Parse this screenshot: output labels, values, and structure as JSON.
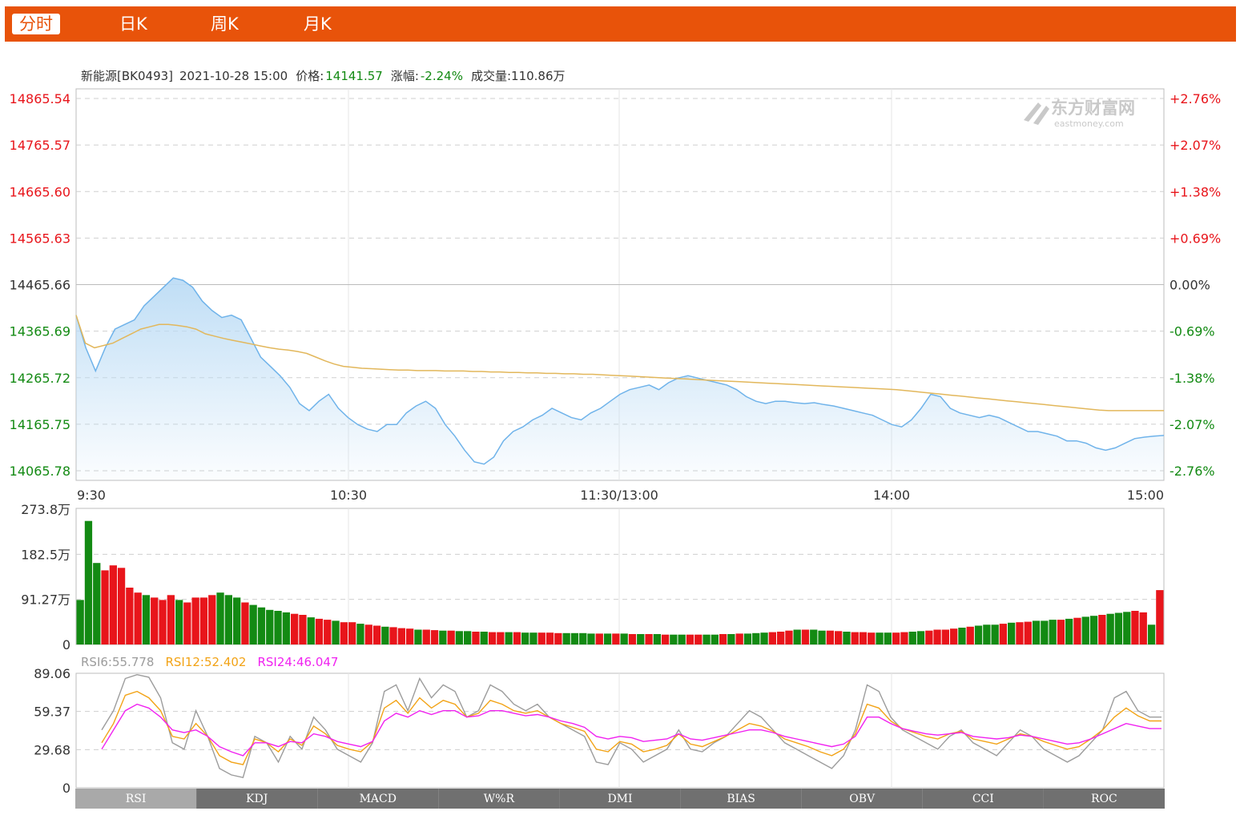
{
  "tabs": [
    {
      "label": "分时",
      "active": true
    },
    {
      "label": "日K"
    },
    {
      "label": "周K"
    },
    {
      "label": "月K"
    }
  ],
  "info": {
    "name": "新能源[BK0493]",
    "datetime": "2021-10-28 15:00",
    "price_label": "价格:",
    "price": "14141.57",
    "change_label": "涨幅:",
    "change": "-2.24%",
    "volume_label": "成交量:",
    "volume": "110.86万"
  },
  "watermark": {
    "cn": "东方财富网",
    "en": "eastmoney.com"
  },
  "colors": {
    "brand": "#e8530a",
    "up": "#e8151b",
    "down": "#138a13",
    "price_line": "#6fb3ea",
    "avg_line": "#e2b75b",
    "rsi6": "#9c9c9c",
    "rsi12": "#f2a316",
    "rsi24": "#f022f0"
  },
  "chart_data": [
    {
      "type": "line",
      "title": "新能源[BK0493]",
      "x_ticks": [
        "9:30",
        "10:30",
        "11:30/13:00",
        "14:00",
        "15:00"
      ],
      "y_ticks": [
        "14865.54",
        "14765.57",
        "14665.60",
        "14565.63",
        "14465.66",
        "14365.69",
        "14265.72",
        "14165.75",
        "14065.78"
      ],
      "y_right_ticks": [
        "+2.76%",
        "+2.07%",
        "+1.38%",
        "+0.69%",
        "0.00%",
        "-0.69%",
        "-1.38%",
        "-2.07%",
        "-2.76%"
      ],
      "ylim": [
        14065.78,
        14865.54
      ],
      "prev_close": 14465.66,
      "series": [
        {
          "name": "price",
          "values": [
            14400,
            14330,
            14280,
            14330,
            14370,
            14380,
            14390,
            14420,
            14440,
            14460,
            14480,
            14475,
            14460,
            14430,
            14410,
            14395,
            14400,
            14390,
            14350,
            14310,
            14290,
            14270,
            14245,
            14210,
            14195,
            14215,
            14230,
            14200,
            14180,
            14165,
            14155,
            14150,
            14165,
            14165,
            14190,
            14205,
            14215,
            14200,
            14165,
            14140,
            14110,
            14085,
            14080,
            14095,
            14130,
            14150,
            14160,
            14175,
            14185,
            14200,
            14190,
            14180,
            14175,
            14190,
            14200,
            14215,
            14230,
            14240,
            14245,
            14250,
            14240,
            14255,
            14265,
            14270,
            14265,
            14260,
            14255,
            14250,
            14240,
            14225,
            14215,
            14210,
            14215,
            14215,
            14212,
            14210,
            14212,
            14208,
            14205,
            14200,
            14195,
            14190,
            14185,
            14175,
            14165,
            14160,
            14175,
            14200,
            14230,
            14225,
            14200,
            14190,
            14185,
            14180,
            14185,
            14180,
            14170,
            14160,
            14150,
            14150,
            14145,
            14140,
            14130,
            14130,
            14125,
            14115,
            14110,
            14115,
            14125,
            14135,
            14138,
            14140,
            14141.57
          ]
        },
        {
          "name": "avg",
          "values": [
            14400,
            14340,
            14330,
            14335,
            14340,
            14350,
            14360,
            14370,
            14375,
            14380,
            14380,
            14378,
            14375,
            14370,
            14360,
            14355,
            14350,
            14346,
            14342,
            14338,
            14334,
            14330,
            14327,
            14325,
            14322,
            14318,
            14310,
            14302,
            14295,
            14290,
            14288,
            14286,
            14285,
            14284,
            14283,
            14282,
            14282,
            14281,
            14281,
            14281,
            14280,
            14280,
            14280,
            14279,
            14279,
            14278,
            14278,
            14277,
            14277,
            14276,
            14276,
            14275,
            14275,
            14274,
            14274,
            14273,
            14273,
            14272,
            14271,
            14270,
            14269,
            14268,
            14267,
            14266,
            14265,
            14264,
            14263,
            14262,
            14261,
            14260,
            14259,
            14258,
            14257,
            14256,
            14255,
            14254,
            14253,
            14252,
            14251,
            14250,
            14249,
            14248,
            14247,
            14246,
            14245,
            14244,
            14243,
            14242,
            14241,
            14240,
            14238,
            14236,
            14234,
            14232,
            14230,
            14228,
            14226,
            14224,
            14222,
            14220,
            14218,
            14216,
            14214,
            14212,
            14210,
            14208,
            14206,
            14204,
            14202,
            14200,
            14198,
            14196,
            14195,
            14195,
            14195,
            14195,
            14195,
            14195,
            14195
          ]
        }
      ]
    },
    {
      "type": "bar",
      "title": "成交量",
      "y_ticks": [
        "273.8万",
        "182.5万",
        "91.27万",
        "0"
      ],
      "ylim": [
        0,
        273.8
      ],
      "unit": "万",
      "values": [
        90,
        250,
        165,
        150,
        160,
        155,
        115,
        105,
        100,
        95,
        90,
        100,
        90,
        85,
        95,
        95,
        100,
        105,
        100,
        95,
        85,
        80,
        75,
        70,
        68,
        65,
        62,
        60,
        55,
        52,
        50,
        48,
        45,
        45,
        42,
        40,
        38,
        36,
        35,
        33,
        32,
        30,
        30,
        29,
        28,
        28,
        27,
        27,
        26,
        26,
        25,
        25,
        25,
        25,
        24,
        24,
        24,
        24,
        23,
        23,
        23,
        23,
        22,
        22,
        22,
        22,
        22,
        21,
        21,
        21,
        21,
        20,
        20,
        20,
        20,
        20,
        20,
        20,
        21,
        21,
        22,
        22,
        23,
        24,
        25,
        26,
        28,
        30,
        30,
        30,
        28,
        28,
        27,
        26,
        25,
        25,
        24,
        24,
        24,
        24,
        25,
        26,
        27,
        28,
        30,
        30,
        32,
        34,
        36,
        38,
        40,
        40,
        42,
        44,
        45,
        46,
        48,
        48,
        50,
        50,
        52,
        54,
        56,
        58,
        60,
        62,
        64,
        66,
        68,
        65,
        40,
        110
      ],
      "directions": [
        "d",
        "d",
        "d",
        "u",
        "u",
        "u",
        "u",
        "u",
        "d",
        "u",
        "u",
        "u",
        "d",
        "u",
        "u",
        "u",
        "u",
        "d",
        "d",
        "d",
        "u",
        "d",
        "d",
        "d",
        "d",
        "d",
        "u",
        "u",
        "d",
        "u",
        "u",
        "d",
        "u",
        "u",
        "d",
        "u",
        "u",
        "d",
        "u",
        "u",
        "u",
        "d",
        "u",
        "u",
        "d",
        "u",
        "d",
        "d",
        "u",
        "d",
        "u",
        "u",
        "d",
        "u",
        "d",
        "d",
        "u",
        "u",
        "u",
        "d",
        "d",
        "d",
        "d",
        "u",
        "d",
        "u",
        "d",
        "u",
        "d",
        "u",
        "d",
        "u",
        "d",
        "d",
        "u",
        "u",
        "d",
        "d",
        "u",
        "d",
        "u",
        "d",
        "d",
        "d",
        "u",
        "u",
        "u",
        "d",
        "u",
        "d",
        "d",
        "u",
        "u",
        "d",
        "u",
        "u",
        "u",
        "d",
        "d",
        "u",
        "u",
        "d",
        "d",
        "u",
        "u",
        "u",
        "u",
        "d",
        "u",
        "d",
        "d",
        "d",
        "u",
        "d",
        "u",
        "u",
        "d",
        "d",
        "d",
        "u",
        "d",
        "u",
        "d",
        "d",
        "u",
        "d",
        "d",
        "d",
        "u",
        "u",
        "d",
        "u"
      ]
    },
    {
      "type": "line",
      "title": "RSI",
      "y_ticks": [
        "89.06",
        "59.37",
        "29.68",
        "0"
      ],
      "ylim": [
        0,
        89.06
      ],
      "series": [
        {
          "name": "RSI6",
          "label": "RSI6:55.778",
          "values": [
            45,
            60,
            85,
            88,
            86,
            70,
            35,
            30,
            60,
            40,
            15,
            10,
            8,
            40,
            35,
            20,
            40,
            30,
            55,
            45,
            30,
            25,
            20,
            35,
            75,
            80,
            60,
            85,
            70,
            80,
            75,
            55,
            60,
            80,
            75,
            65,
            60,
            65,
            55,
            50,
            45,
            40,
            20,
            18,
            35,
            30,
            20,
            25,
            30,
            45,
            30,
            28,
            35,
            40,
            50,
            60,
            55,
            45,
            35,
            30,
            25,
            20,
            15,
            25,
            45,
            80,
            75,
            55,
            45,
            40,
            35,
            30,
            40,
            45,
            35,
            30,
            25,
            35,
            45,
            40,
            30,
            25,
            20,
            25,
            35,
            45,
            70,
            75,
            60,
            55,
            55
          ]
        },
        {
          "name": "RSI12",
          "label": "RSI12:52.402",
          "values": [
            35,
            50,
            72,
            75,
            70,
            60,
            40,
            38,
            50,
            40,
            25,
            20,
            18,
            38,
            35,
            28,
            38,
            33,
            48,
            42,
            33,
            30,
            28,
            36,
            62,
            68,
            58,
            70,
            62,
            68,
            65,
            55,
            58,
            68,
            65,
            60,
            58,
            60,
            55,
            50,
            47,
            44,
            30,
            28,
            36,
            34,
            28,
            30,
            33,
            42,
            34,
            32,
            36,
            40,
            45,
            50,
            48,
            44,
            38,
            35,
            32,
            28,
            25,
            30,
            42,
            65,
            62,
            52,
            46,
            43,
            40,
            38,
            42,
            44,
            38,
            36,
            34,
            38,
            42,
            40,
            36,
            33,
            30,
            32,
            38,
            45,
            55,
            62,
            56,
            52,
            52
          ]
        },
        {
          "name": "RSI24",
          "label": "RSI24:46.047",
          "values": [
            30,
            45,
            60,
            65,
            62,
            55,
            45,
            43,
            45,
            40,
            32,
            28,
            25,
            35,
            35,
            32,
            36,
            35,
            42,
            40,
            36,
            34,
            32,
            36,
            52,
            58,
            55,
            60,
            57,
            60,
            60,
            55,
            56,
            60,
            60,
            58,
            56,
            57,
            55,
            52,
            50,
            47,
            40,
            38,
            40,
            39,
            36,
            37,
            38,
            42,
            38,
            37,
            39,
            41,
            43,
            45,
            45,
            43,
            40,
            38,
            36,
            34,
            32,
            34,
            40,
            55,
            55,
            50,
            46,
            44,
            42,
            41,
            42,
            43,
            40,
            39,
            38,
            39,
            41,
            40,
            38,
            36,
            34,
            35,
            38,
            42,
            46,
            50,
            48,
            46,
            46
          ]
        }
      ]
    }
  ],
  "indicator_tabs": [
    {
      "label": "RSI",
      "active": true
    },
    {
      "label": "KDJ"
    },
    {
      "label": "MACD"
    },
    {
      "label": "W%R"
    },
    {
      "label": "DMI"
    },
    {
      "label": "BIAS"
    },
    {
      "label": "OBV"
    },
    {
      "label": "CCI"
    },
    {
      "label": "ROC"
    }
  ]
}
